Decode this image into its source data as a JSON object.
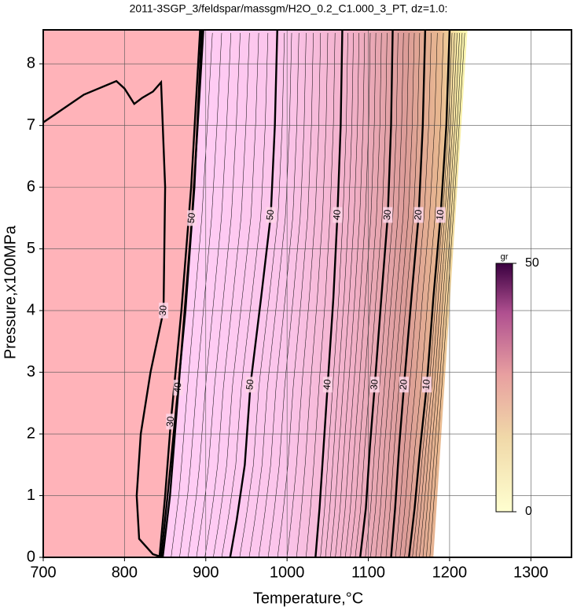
{
  "chart_data": {
    "type": "contour",
    "title": "2011-3SGP_3/feldspar/massgm/H2O_0.2_C1.000_3_PT, dz=1.0:",
    "x_label": "Temperature,°C",
    "y_label": "Pressure,x100MPa",
    "xlim": [
      700,
      1350
    ],
    "ylim": [
      0,
      8.55
    ],
    "xticks": [
      700,
      800,
      900,
      1000,
      1100,
      1200,
      1300
    ],
    "yticks": [
      0,
      1,
      2,
      3,
      4,
      5,
      6,
      7,
      8
    ],
    "grid": true,
    "contours": [
      {
        "level": 30,
        "x": [
          700,
          750,
          790,
          800,
          812,
          822,
          835,
          845,
          850,
          848,
          832,
          820,
          815,
          818,
          835,
          847
        ],
        "y": [
          7.05,
          7.5,
          7.72,
          7.6,
          7.35,
          7.45,
          7.55,
          7.7,
          6,
          4,
          3,
          2,
          1,
          0.3,
          0.05,
          0
        ]
      },
      {
        "level": 30,
        "x": [
          843,
          850,
          857,
          870,
          882,
          893
        ],
        "y": [
          0,
          1,
          2.2,
          4,
          6,
          8.55
        ]
      },
      {
        "level": 40,
        "x": [
          845,
          853,
          866,
          875,
          886,
          895
        ],
        "y": [
          0,
          1,
          2.75,
          4,
          6,
          8.55
        ]
      },
      {
        "level": 50,
        "x": [
          847,
          856,
          862,
          883,
          890,
          897
        ],
        "y": [
          0,
          1,
          2,
          5.5,
          7,
          8.55
        ]
      },
      {
        "level": 50,
        "x": [
          930,
          938,
          948,
          955,
          968,
          980,
          985,
          988
        ],
        "y": [
          0,
          0.6,
          1.5,
          2.8,
          4.2,
          5.55,
          7,
          8.55
        ]
      },
      {
        "level": 40,
        "x": [
          1035,
          1040,
          1045,
          1050,
          1057,
          1062,
          1066,
          1068
        ],
        "y": [
          0,
          0.8,
          1.8,
          2.8,
          4.2,
          5.55,
          7,
          8.55
        ]
      },
      {
        "level": 30,
        "x": [
          1090,
          1097,
          1102,
          1108,
          1116,
          1124,
          1128,
          1130
        ],
        "y": [
          0,
          0.8,
          1.8,
          2.8,
          4.2,
          5.55,
          7,
          8.55
        ]
      },
      {
        "level": 20,
        "x": [
          1128,
          1133,
          1138,
          1144,
          1153,
          1162,
          1167,
          1170
        ],
        "y": [
          0,
          0.8,
          1.8,
          2.8,
          4.2,
          5.55,
          7,
          8.55
        ]
      },
      {
        "level": 10,
        "x": [
          1150,
          1157,
          1164,
          1172,
          1180,
          1189,
          1196,
          1200
        ],
        "y": [
          0,
          0.8,
          1.8,
          2.8,
          4.2,
          5.55,
          7,
          8.55
        ]
      }
    ],
    "colorbar": {
      "label": "gr",
      "lim": [
        0,
        50
      ],
      "ticks": [
        0,
        50
      ]
    }
  }
}
